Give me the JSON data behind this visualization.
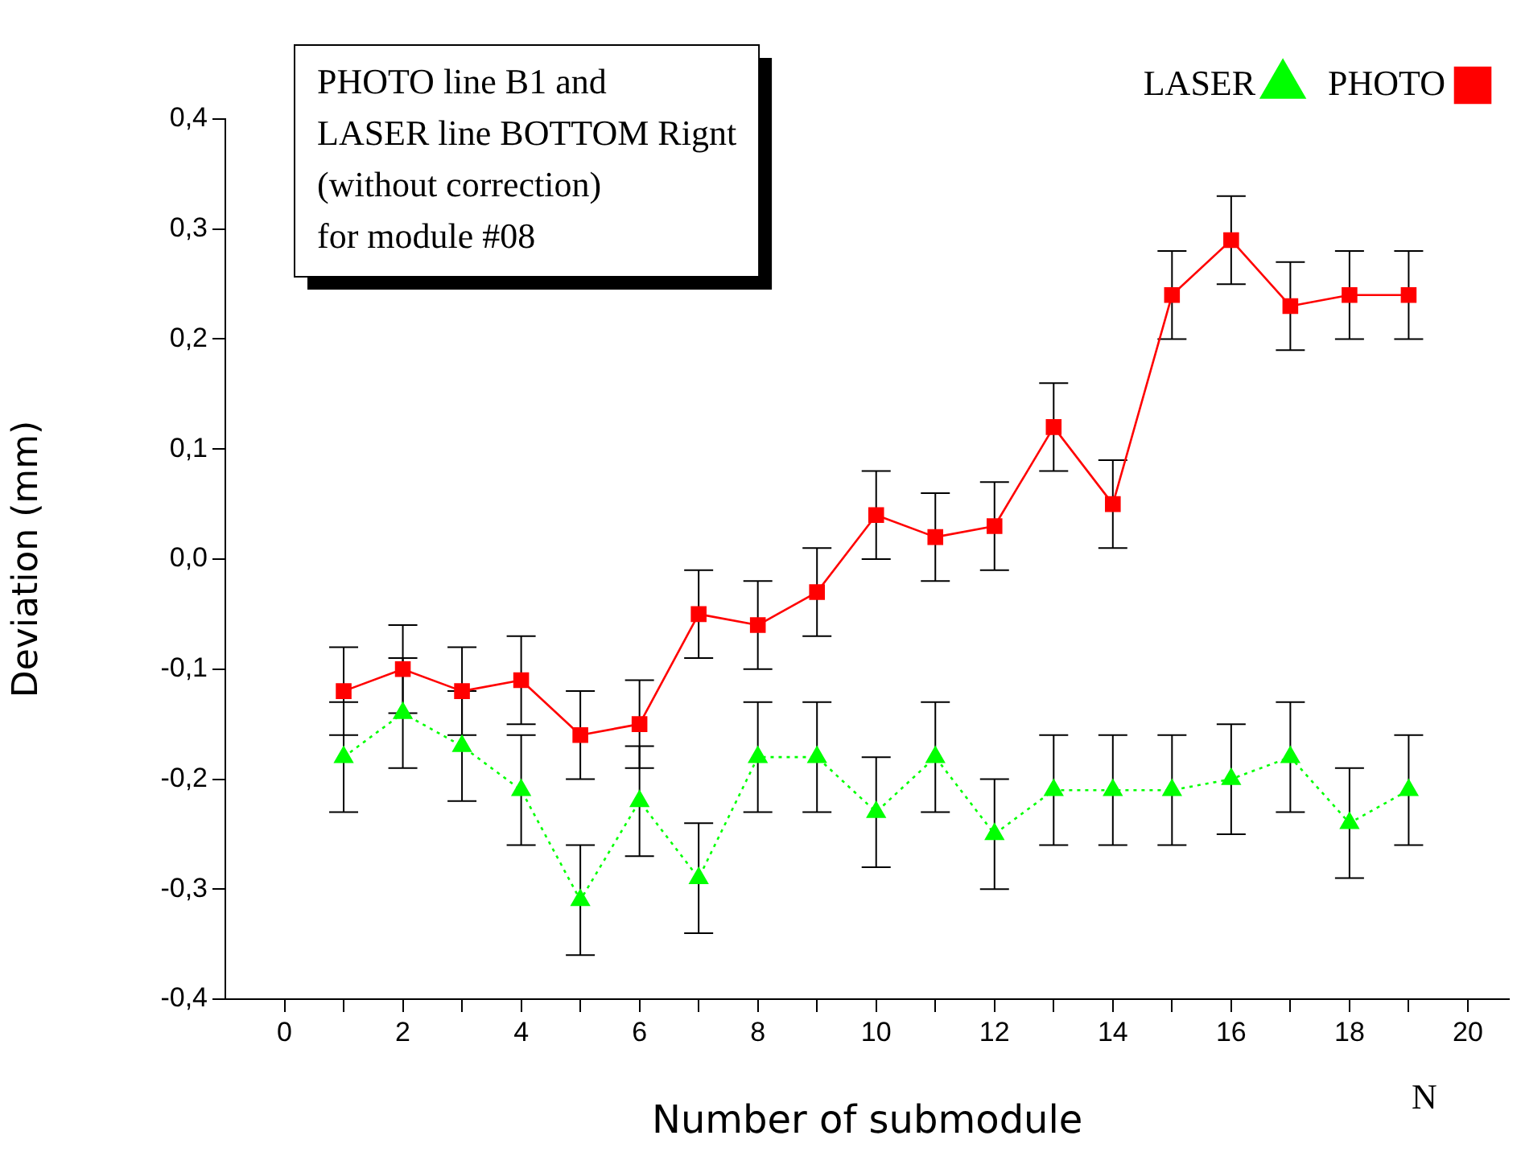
{
  "chart_data": {
    "type": "line",
    "xlabel": "Number of submodule",
    "ylabel": "Deviation (mm)",
    "x": [
      1,
      2,
      3,
      4,
      5,
      6,
      7,
      8,
      9,
      10,
      11,
      12,
      13,
      14,
      15,
      16,
      17,
      18,
      19
    ],
    "series": [
      {
        "name": "LASER",
        "color": "#00ff00",
        "marker": "triangle",
        "line_style": "dotted",
        "values": [
          -0.18,
          -0.14,
          -0.17,
          -0.21,
          -0.31,
          -0.22,
          -0.29,
          -0.18,
          -0.18,
          -0.23,
          -0.18,
          -0.25,
          -0.21,
          -0.21,
          -0.21,
          -0.2,
          -0.18,
          -0.24,
          -0.21
        ],
        "errors": [
          0.05,
          0.05,
          0.05,
          0.05,
          0.05,
          0.05,
          0.05,
          0.05,
          0.05,
          0.05,
          0.05,
          0.05,
          0.05,
          0.05,
          0.05,
          0.05,
          0.05,
          0.05,
          0.05
        ]
      },
      {
        "name": "PHOTO",
        "color": "#ff0000",
        "marker": "square",
        "line_style": "solid",
        "values": [
          -0.12,
          -0.1,
          -0.12,
          -0.11,
          -0.16,
          -0.15,
          -0.05,
          -0.06,
          -0.03,
          0.04,
          0.02,
          0.03,
          0.12,
          0.05,
          0.24,
          0.29,
          0.23,
          0.24,
          0.24
        ],
        "errors": [
          0.04,
          0.04,
          0.04,
          0.04,
          0.04,
          0.04,
          0.04,
          0.04,
          0.04,
          0.04,
          0.04,
          0.04,
          0.04,
          0.04,
          0.04,
          0.04,
          0.04,
          0.04,
          0.04
        ]
      }
    ],
    "xlim": [
      -1,
      20.7
    ],
    "xticks": [
      0,
      {
        "value": 1,
        "label": null
      },
      2,
      {
        "value": 3,
        "label": null
      },
      4,
      {
        "value": 5,
        "label": null
      },
      6,
      {
        "value": 7,
        "label": null
      },
      8,
      {
        "value": 9,
        "label": null
      },
      10,
      {
        "value": 11,
        "label": null
      },
      12,
      {
        "value": 13,
        "label": null
      },
      14,
      {
        "value": 15,
        "label": null
      },
      16,
      {
        "value": 17,
        "label": null
      },
      18,
      {
        "value": 19,
        "label": null
      },
      20
    ],
    "ylim": [
      -0.4,
      0.4
    ],
    "yticks": [
      {
        "value": -0.4,
        "label": "-0,4"
      },
      {
        "value": -0.3,
        "label": "-0,3"
      },
      {
        "value": -0.2,
        "label": "-0,2"
      },
      {
        "value": -0.1,
        "label": "-0,1"
      },
      {
        "value": 0,
        "label": "0,0"
      },
      {
        "value": 0.1,
        "label": "0,1"
      },
      {
        "value": 0.2,
        "label": "0,2"
      },
      {
        "value": 0.3,
        "label": "0,3"
      },
      {
        "value": 0.4,
        "label": "0,4"
      }
    ],
    "grid": false,
    "legend": "top right",
    "annotations": [
      "PHOTO line B1 and\nLASER line BOTTOM Rignt\n(without correction)\nfor module #08",
      "N"
    ]
  }
}
